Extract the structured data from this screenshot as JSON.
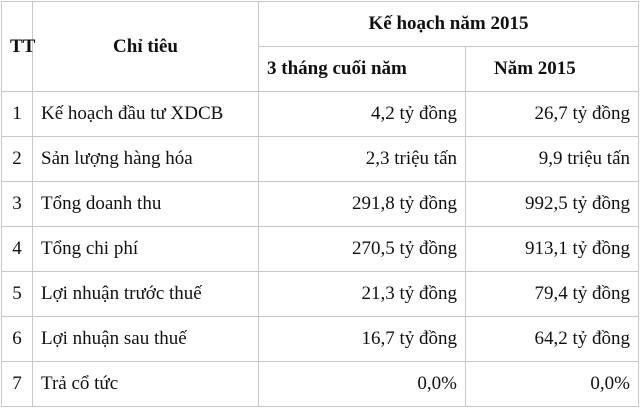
{
  "headers": {
    "tt": "TT",
    "chi_tieu": "Chỉ tiêu",
    "group": "Kế hoạch năm 2015",
    "col_q4": "3 tháng cuối năm",
    "col_year": "Năm 2015"
  },
  "rows": [
    {
      "tt": "1",
      "name": "Kế hoạch đầu tư XDCB",
      "q4": "4,2 tỷ đồng",
      "year": "26,7 tỷ đồng"
    },
    {
      "tt": "2",
      "name": "Sản lượng hàng hóa",
      "q4": "2,3 triệu tấn",
      "year": "9,9 triệu tấn"
    },
    {
      "tt": "3",
      "name": "Tổng doanh thu",
      "q4": "291,8 tỷ đồng",
      "year": "992,5 tỷ đồng"
    },
    {
      "tt": "4",
      "name": "Tổng chi phí",
      "q4": "270,5 tỷ đồng",
      "year": "913,1 tỷ đồng"
    },
    {
      "tt": "5",
      "name": "Lợi nhuận trước thuế",
      "q4": "21,3 tỷ đồng",
      "year": "79,4 tỷ đồng"
    },
    {
      "tt": "6",
      "name": "Lợi nhuận sau thuế",
      "q4": "16,7 tỷ đồng",
      "year": "64,2 tỷ đồng"
    },
    {
      "tt": "7",
      "name": "Trả cổ tức",
      "q4": "0,0%",
      "year": "0,0%"
    }
  ]
}
